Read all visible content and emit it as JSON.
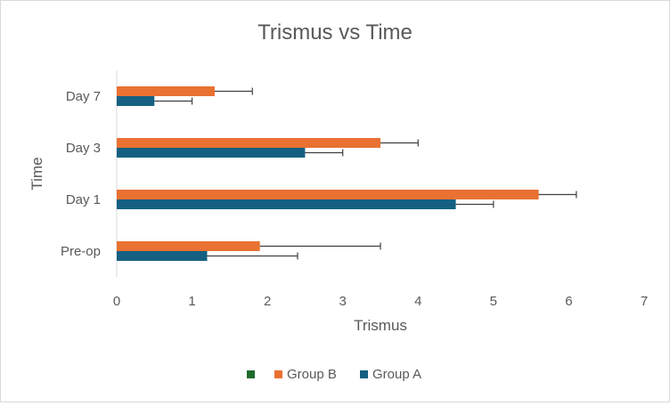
{
  "chart_data": {
    "type": "bar",
    "orientation": "horizontal",
    "title": "Trismus vs Time",
    "xlabel": "Trismus",
    "ylabel": "Time",
    "categories": [
      "Pre-op",
      "Day 1",
      "Day 3",
      "Day 7"
    ],
    "xlim": [
      0,
      7
    ],
    "xticks": [
      "0",
      "1",
      "2",
      "3",
      "4",
      "5",
      "6",
      "7"
    ],
    "grid": false,
    "legend_position": "bottom",
    "legend": [
      {
        "name": "",
        "color": "#1e6b2e"
      },
      {
        "name": "Group B",
        "color": "#e97132"
      },
      {
        "name": "Group A",
        "color": "#156082"
      }
    ],
    "series": [
      {
        "name": "Group B",
        "color": "#e97132",
        "values": [
          1.9,
          5.6,
          3.5,
          1.3
        ],
        "error_plus": [
          1.6,
          0.5,
          0.5,
          0.5
        ]
      },
      {
        "name": "Group A",
        "color": "#156082",
        "values": [
          1.2,
          4.5,
          2.5,
          0.5
        ],
        "error_plus": [
          1.2,
          0.5,
          0.5,
          0.5
        ]
      }
    ]
  }
}
